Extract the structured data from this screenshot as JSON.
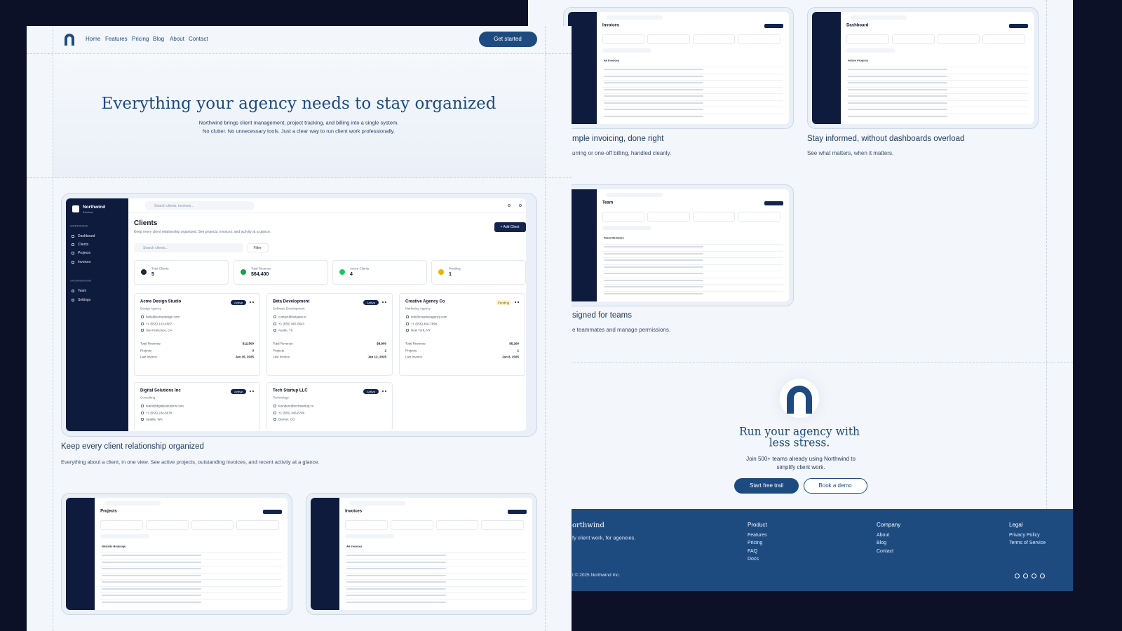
{
  "nav": {
    "links": [
      "Home",
      "Features",
      "Pricing",
      "Blog",
      "About",
      "Contact"
    ],
    "cta": "Get started"
  },
  "hero": {
    "title": "Everything your agency needs to stay organized",
    "subtitle": [
      "Northwind brings client management, project tracking, and billing into a single system.",
      "No clutter. No unnecessary tools. Just a clear way to run client work professionally."
    ]
  },
  "clients_app": {
    "brand": "Northwind",
    "brand_sub": "Solutions",
    "workspace_label": "WORKSPACE",
    "workspace_items": [
      "Dashboard",
      "Clients",
      "Projects",
      "Invoices"
    ],
    "organization_label": "ORGANIZATION",
    "organization_items": [
      "Team",
      "Settings"
    ],
    "search": "Search clients, invoices...",
    "title": "Clients",
    "subtitle": "Keep every client relationship organized. See projects, invoices, and activity at a glance.",
    "add_button": "+ Add Client",
    "filter_search": "Search clients...",
    "filter": "Filter",
    "stats": [
      {
        "label": "Total Clients",
        "value": "5",
        "icon_color": "#1e293b"
      },
      {
        "label": "Total Revenue",
        "value": "$64,400",
        "icon_color": "#16a34a"
      },
      {
        "label": "Active Clients",
        "value": "4",
        "icon_color": "#22c55e"
      },
      {
        "label": "Pending",
        "value": "1",
        "icon_color": "#eab308"
      }
    ],
    "card_labels": [
      "Total Revenue",
      "Projects",
      "Last Invoice"
    ],
    "clients": [
      {
        "name": "Acme Design Studio",
        "status": "Active",
        "status_color": "#13244d",
        "type": "Design Agency",
        "email": "hello@acmedesign.com",
        "phone": "+1 (555) 123-4567",
        "location": "San Francisco, CA",
        "revenue": "$12,500",
        "projects": "3",
        "last_invoice": "Jan 15, 2025"
      },
      {
        "name": "Beta Development",
        "status": "Active",
        "status_color": "#13244d",
        "type": "Software Development",
        "email": "contact@betadev.io",
        "phone": "+1 (555) 987-6543",
        "location": "Austin, TX",
        "revenue": "$8,900",
        "projects": "2",
        "last_invoice": "Jan 12, 2025"
      },
      {
        "name": "Creative Agency Co",
        "status": "Pending",
        "status_color": "#fdf3d0",
        "type": "Marketing Agency",
        "email": "info@creativeagency.com",
        "phone": "+1 (555) 456-7890",
        "location": "New York, NY",
        "revenue": "$5,200",
        "projects": "1",
        "last_invoice": "Jan 8, 2025"
      },
      {
        "name": "Digital Solutions Inc",
        "status": "Active",
        "status_color": "#13244d",
        "type": "Consulting",
        "email": "team@digitalsolutions.com",
        "phone": "+1 (555) 234-5678",
        "location": "Seattle, WA"
      },
      {
        "name": "Tech Startup LLC",
        "status": "Active",
        "status_color": "#13244d",
        "type": "Technology",
        "email": "founders@techstartup.co",
        "phone": "+1 (555) 345-6789",
        "location": "Denver, CO"
      }
    ]
  },
  "features": [
    {
      "title": "Keep every client relationship organized",
      "description": "Everything about a client, in one view. See active projects, outstanding invoices, and recent activity at a glance."
    },
    {
      "title": "mple invoicing, done right",
      "description": "urring or one-off billing, handled cleanly."
    },
    {
      "title": "Stay informed, without dashboards overload",
      "description": "See what matters, when it matters."
    },
    {
      "title": "signed for teams",
      "description": "e teammates and manage permissions."
    }
  ],
  "thumbnails": [
    {
      "title": "Projects",
      "section": "Website Redesign"
    },
    {
      "title": "Invoices",
      "section": "All Invoices"
    },
    {
      "title": "Invoices",
      "section": "All Invoices"
    },
    {
      "title": "Dashboard",
      "section": "Active Projects"
    },
    {
      "title": "Team",
      "section": "Team Members"
    }
  ],
  "cta": {
    "title": [
      "Run your agency with",
      "less stress."
    ],
    "text": [
      "Join 500+ teams already using Northwind to",
      "simplify client work."
    ],
    "primary": "Start free trail",
    "secondary": "Book a demo"
  },
  "footer": {
    "brand": "orthwind",
    "tagline": "fy client work, for agencies.",
    "copyright": "t © 2025 Northwind Inc.",
    "columns": [
      {
        "title": "Product",
        "links": [
          "Features",
          "Pricing",
          "FAQ",
          "Docs"
        ]
      },
      {
        "title": "Company",
        "links": [
          "About",
          "Blog",
          "Contact"
        ]
      },
      {
        "title": "Legal",
        "links": [
          "Privacy Policy",
          "Terms of Service"
        ]
      }
    ]
  }
}
